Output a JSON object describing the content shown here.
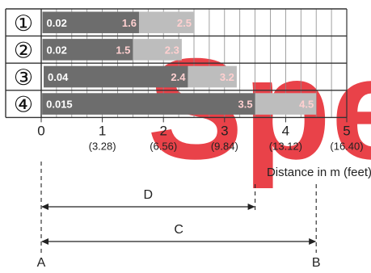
{
  "chart_data": {
    "type": "bar",
    "rows": [
      {
        "label": "①",
        "start": 0.02,
        "start_label": "0.02",
        "mid": 1.6,
        "mid_label": "1.6",
        "end": 2.5,
        "end_label": "2.5"
      },
      {
        "label": "②",
        "start": 0.02,
        "start_label": "0.02",
        "mid": 1.5,
        "mid_label": "1.5",
        "end": 2.3,
        "end_label": "2.3"
      },
      {
        "label": "③",
        "start": 0.04,
        "start_label": "0.04",
        "mid": 2.4,
        "mid_label": "2.4",
        "end": 3.2,
        "end_label": "3.2"
      },
      {
        "label": "④",
        "start": 0.015,
        "start_label": "0.015",
        "mid": 3.5,
        "mid_label": "3.5",
        "end": 4.5,
        "end_label": "4.5"
      }
    ],
    "xlim": [
      0,
      5
    ],
    "ticks": [
      {
        "value": 0,
        "label": "0",
        "sublabel": ""
      },
      {
        "value": 1,
        "label": "1",
        "sublabel": "(3.28)"
      },
      {
        "value": 2,
        "label": "2",
        "sublabel": "(6.56)"
      },
      {
        "value": 3,
        "label": "3",
        "sublabel": "(9.84)"
      },
      {
        "value": 4,
        "label": "4",
        "sublabel": "(13.12)"
      },
      {
        "value": 5,
        "label": "5",
        "sublabel": "(16.40)"
      }
    ],
    "xlabel": "Distance in m (feet)",
    "grid": true,
    "colors": {
      "dark_bar": "#6d6d6d",
      "light_bar": "#bdbdbd",
      "bar_text_dark": "#ffffff",
      "bar_text_light": "#ffd0d0",
      "watermark": "#e8333a"
    }
  },
  "dimensions": {
    "d": {
      "label": "D",
      "from": 0,
      "to": 3.5
    },
    "c": {
      "label": "C",
      "from": 0,
      "to": 4.5
    },
    "point_a": {
      "label": "A",
      "at": 0
    },
    "point_b": {
      "label": "B",
      "at": 4.5
    }
  },
  "watermark": {
    "text": "Spec"
  }
}
